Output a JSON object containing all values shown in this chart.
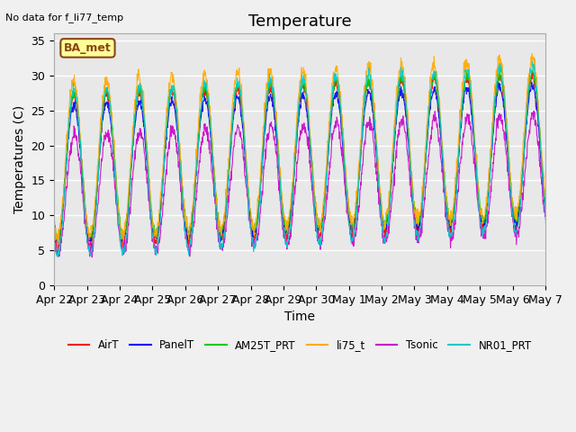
{
  "title": "Temperature",
  "ylabel": "Temperatures (C)",
  "xlabel": "Time",
  "no_data_text": "No data for f_li77_temp",
  "station_label": "BA_met",
  "ylim": [
    0,
    36
  ],
  "yticks": [
    0,
    5,
    10,
    15,
    20,
    25,
    30,
    35
  ],
  "x_labels": [
    "Apr 22",
    "Apr 23",
    "Apr 24",
    "Apr 25",
    "Apr 26",
    "Apr 27",
    "Apr 28",
    "Apr 29",
    "Apr 30",
    "May 1",
    "May 2",
    "May 3",
    "May 4",
    "May 5",
    "May 6",
    "May 7"
  ],
  "series": {
    "AirT": {
      "color": "#ff0000"
    },
    "PanelT": {
      "color": "#0000ff"
    },
    "AM25T_PRT": {
      "color": "#00cc00"
    },
    "li75_t": {
      "color": "#ffaa00"
    },
    "Tsonic": {
      "color": "#cc00cc"
    },
    "NR01_PRT": {
      "color": "#00cccc"
    }
  },
  "background_color": "#e8e8e8",
  "grid_color": "#ffffff",
  "title_fontsize": 13,
  "label_fontsize": 10,
  "tick_fontsize": 9
}
